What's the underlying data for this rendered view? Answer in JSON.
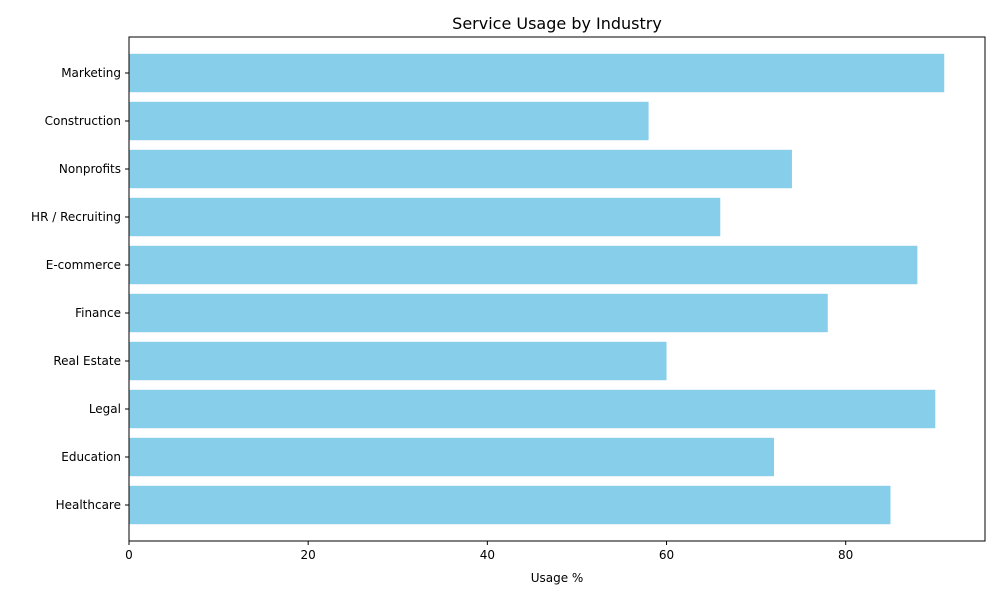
{
  "chart_data": {
    "type": "bar",
    "orientation": "horizontal",
    "title": "Service Usage by Industry",
    "xlabel": "Usage %",
    "ylabel": "",
    "categories": [
      "Healthcare",
      "Education",
      "Legal",
      "Real Estate",
      "Finance",
      "E-commerce",
      "HR / Recruiting",
      "Nonprofits",
      "Construction",
      "Marketing"
    ],
    "values": [
      85,
      72,
      90,
      60,
      78,
      88,
      66,
      74,
      58,
      91
    ],
    "xlim": [
      0,
      95.55
    ],
    "xticks": [
      0,
      20,
      40,
      60,
      80
    ],
    "grid": false,
    "legend": "none",
    "colors": {
      "bar": "#87ceeb",
      "axis": "#000000",
      "text": "#000000"
    }
  }
}
